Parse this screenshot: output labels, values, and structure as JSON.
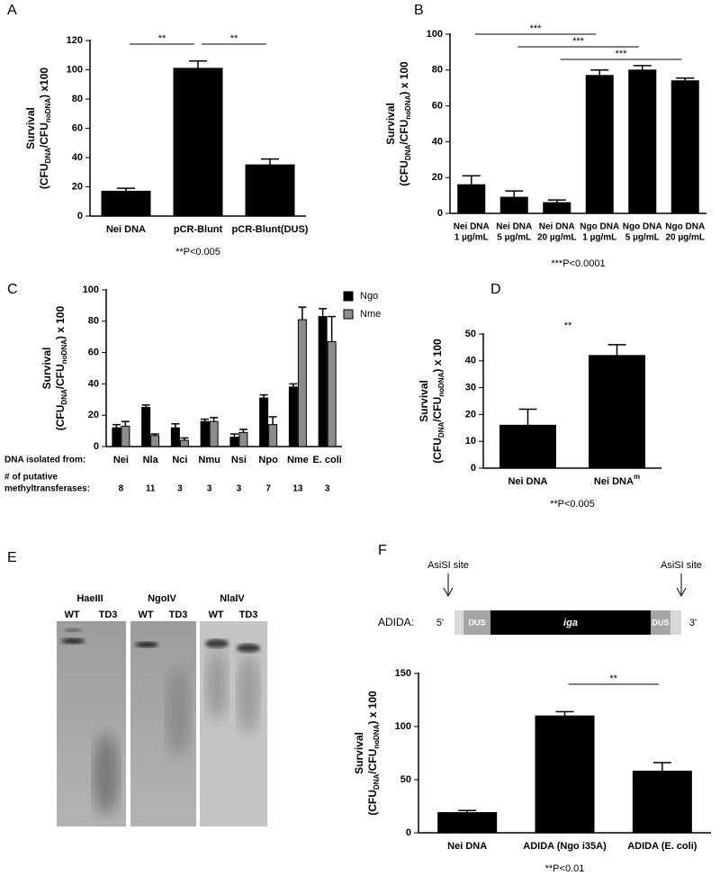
{
  "chart_data": [
    {
      "type": "bar",
      "panel": "A",
      "ylabel": {
        "title": "Survival",
        "parts": [
          "(CFU",
          "DNA",
          "/CFU",
          "noDNA",
          ") x100"
        ]
      },
      "categories": [
        "Nei DNA",
        "pCR-Blunt",
        "pCR-Blunt(DUS)"
      ],
      "values": [
        17,
        101,
        35
      ],
      "errors": [
        2,
        5,
        4
      ],
      "color": "#000000",
      "ylim": [
        0,
        120
      ],
      "yticks": [
        0,
        20,
        40,
        60,
        80,
        100,
        120
      ],
      "brackets": [
        {
          "text": "**",
          "from": 0,
          "to": 1
        },
        {
          "text": "**",
          "from": 1,
          "to": 2
        }
      ],
      "footnote": "**P<0.005"
    },
    {
      "type": "bar",
      "panel": "B",
      "ylabel": {
        "title": "Survival",
        "parts": [
          "(CFU",
          "DNA",
          "/CFU",
          "noDNA",
          ") x 100"
        ]
      },
      "categories": [
        [
          "Nei DNA",
          "1 µg/mL"
        ],
        [
          "Nei DNA",
          "5 µg/mL"
        ],
        [
          "Nei DNA",
          "20 µg/mL"
        ],
        [
          "Ngo DNA",
          "1 µg/mL"
        ],
        [
          "Ngo DNA",
          "5 µg/mL"
        ],
        [
          "Ngo DNA",
          "20 µg/mL"
        ]
      ],
      "values": [
        16,
        9,
        6,
        77,
        80,
        74
      ],
      "errors": [
        5,
        3.5,
        1.5,
        3,
        2.5,
        1.5
      ],
      "color": "#000000",
      "ylim": [
        0,
        100
      ],
      "yticks": [
        0,
        20,
        40,
        60,
        80,
        100
      ],
      "brackets": [
        {
          "text": "***",
          "from": 0,
          "to": 3
        },
        {
          "text": "***",
          "from": 1,
          "to": 4
        },
        {
          "text": "***",
          "from": 2,
          "to": 5
        }
      ],
      "footnote": "***P<0.0001"
    },
    {
      "type": "grouped_bar",
      "panel": "C",
      "ylabel": {
        "title": "Survival",
        "parts": [
          "(CFU",
          "DNA",
          "/CFU",
          "noDNA",
          ") x 100"
        ]
      },
      "categories": [
        "Nei",
        "Nla",
        "Nci",
        "Nmu",
        "Nsi",
        "Npo",
        "Nme",
        "E. coli"
      ],
      "series": [
        {
          "name": "Ngo",
          "color": "#000000",
          "values": [
            12,
            25,
            12,
            16,
            6,
            31,
            38,
            83
          ],
          "errors": [
            2,
            1.5,
            2.5,
            1.5,
            2,
            2,
            2,
            5
          ]
        },
        {
          "name": "Nme",
          "color": "#8c8c8c",
          "values": [
            13,
            7,
            4,
            16,
            9,
            14,
            81,
            67
          ],
          "errors": [
            3,
            1,
            1.5,
            2.5,
            2,
            5,
            8,
            16
          ]
        }
      ],
      "ylim": [
        0,
        100
      ],
      "yticks": [
        0,
        20,
        40,
        60,
        80,
        100
      ],
      "legend": "right",
      "row_labels": [
        "DNA isolated from:",
        [
          "# of putative",
          "methyltransferases:"
        ]
      ],
      "methyltransferase_counts": [
        8,
        11,
        3,
        3,
        3,
        7,
        13,
        3
      ]
    },
    {
      "type": "bar",
      "panel": "D",
      "ylabel": {
        "title": "Survival",
        "parts": [
          "(CFU",
          "DNA",
          "/CFU",
          "noDNA",
          ") x 100"
        ]
      },
      "categories": [
        "Nei DNA",
        "Nei DNA"
      ],
      "category_superscripts": {
        "1": "m"
      },
      "values": [
        16,
        42
      ],
      "errors": [
        6,
        4
      ],
      "color": "#000000",
      "ylim": [
        0,
        50
      ],
      "yticks": [
        0,
        10,
        20,
        30,
        40,
        50
      ],
      "annotation": "**",
      "footnote": "**P<0.005"
    },
    {
      "type": "bar",
      "panel": "F",
      "ylabel": {
        "title": "Survival",
        "parts": [
          "(CFU",
          "DNA",
          "/CFU",
          "noDNA",
          ") x 100"
        ]
      },
      "categories": [
        "Nei DNA",
        "ADIDA (Ngo i35A)",
        "ADIDA (E. coli)"
      ],
      "values": [
        19,
        110,
        58
      ],
      "errors": [
        2,
        4,
        8
      ],
      "color": "#000000",
      "ylim": [
        0,
        150
      ],
      "yticks": [
        0,
        50,
        100,
        150
      ],
      "brackets": [
        {
          "text": "**",
          "from": 1,
          "to": 2
        }
      ],
      "footnote": "**P<0.01"
    }
  ],
  "gel": {
    "panel": "E",
    "enzymes": [
      "HaeIII",
      "NgoIV",
      "NlaIV"
    ],
    "lanes": [
      "WT",
      "TD3"
    ]
  },
  "diagram": {
    "site_labels": [
      "AsiSI site",
      "AsiSI site"
    ],
    "construct": "ADIDA:",
    "five_prime": "5'",
    "three_prime": "3'",
    "segments": [
      "DUS",
      "iga",
      "DUS"
    ]
  }
}
